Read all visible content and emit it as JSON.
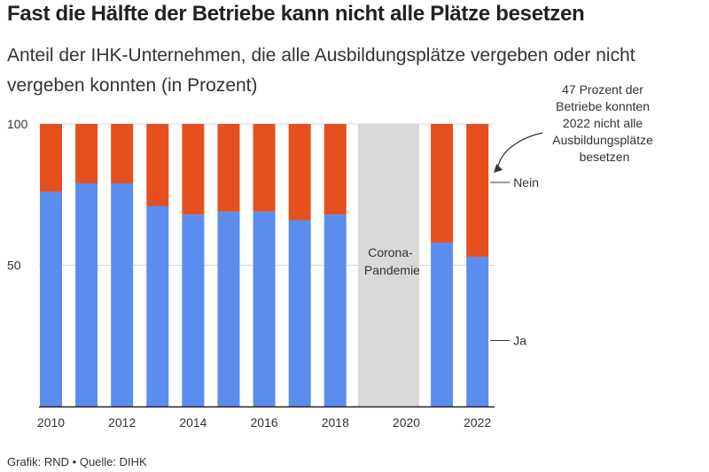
{
  "chart_data": {
    "type": "bar",
    "stacked": true,
    "title": "Fast die Hälfte der Betriebe kann nicht alle Plätze besetzen",
    "subtitle": "Anteil der IHK-Unternehmen, die alle Ausbildungsplätze vergeben oder nicht vergeben konnten (in Prozent)",
    "categories": [
      "2010",
      "2011",
      "2012",
      "2013",
      "2014",
      "2015",
      "2016",
      "2017",
      "2018",
      "2019",
      "2020",
      "2021",
      "2022"
    ],
    "x_tick_labels": [
      "2010",
      "2012",
      "2014",
      "2016",
      "2018",
      "2020",
      "2022"
    ],
    "series": [
      {
        "name": "Ja",
        "values": [
          76,
          79,
          79,
          71,
          68,
          69,
          69,
          66,
          68,
          null,
          null,
          58,
          53
        ]
      },
      {
        "name": "Nein",
        "values": [
          24,
          21,
          21,
          29,
          32,
          31,
          31,
          34,
          32,
          null,
          null,
          42,
          47
        ]
      }
    ],
    "ylim": [
      0,
      100
    ],
    "y_ticks": [
      50,
      100
    ],
    "gap_label_lines": [
      "Corona-",
      "Pandemie"
    ],
    "annotation_lines": [
      "47 Prozent der",
      "Betriebe konnten",
      "2022 nicht alle",
      "Ausbildungsplätze",
      "besetzen"
    ],
    "colors": {
      "Ja": "#5b8def",
      "Nein": "#e5501e",
      "gap": "#d9d9d9"
    }
  },
  "source": "Grafik: RND • Quelle: DIHK"
}
